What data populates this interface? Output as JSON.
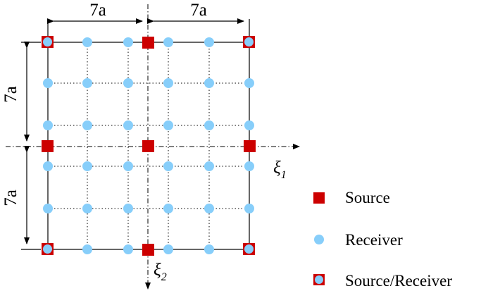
{
  "dimensions": {
    "top_left": "7a",
    "top_right": "7a",
    "left_upper": "7a",
    "left_lower": "7a"
  },
  "axes": {
    "horizontal": {
      "symbol": "ξ",
      "subscript": "1"
    },
    "vertical": {
      "symbol": "ξ",
      "subscript": "2"
    }
  },
  "legend": [
    {
      "marker": "source",
      "label": "Source"
    },
    {
      "marker": "receiver",
      "label": "Receiver"
    },
    {
      "marker": "source-receiver",
      "label": "Source/Receiver"
    }
  ],
  "colors": {
    "source": "#cc0000",
    "receiver": "#87cefa",
    "line": "#000000"
  }
}
